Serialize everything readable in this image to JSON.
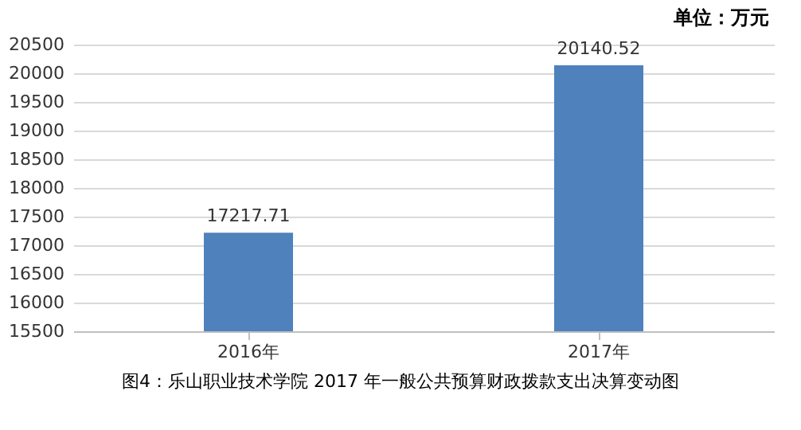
{
  "chart_data": {
    "type": "bar",
    "categories": [
      "2016年",
      "2017年"
    ],
    "values": [
      17217.71,
      20140.52
    ],
    "color": "#4f81bd",
    "ylim": [
      15500,
      20500
    ],
    "yticks": [
      15500,
      16000,
      16500,
      17000,
      17500,
      18000,
      18500,
      19000,
      19500,
      20000,
      20500
    ],
    "grid": "y",
    "data_labels": true,
    "annotations": [
      "单位：万元",
      "图4：乐山职业技术学院 2017 年一般公共预算财政拨款支出决算变动图"
    ]
  }
}
